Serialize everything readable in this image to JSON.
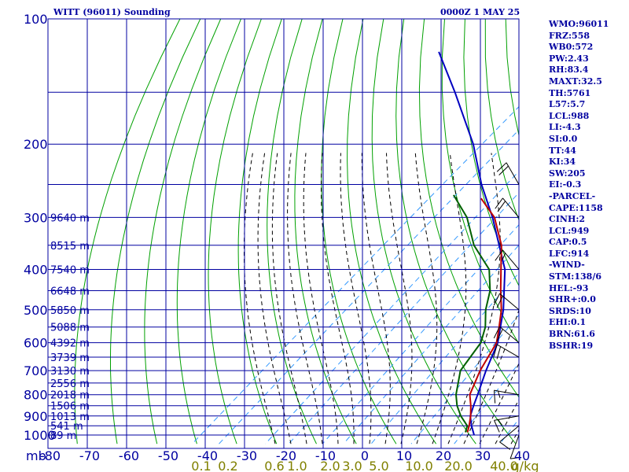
{
  "header": {
    "station_title": "WITT (96011) Sounding",
    "valid_time": "0000Z  1 MAY 25"
  },
  "indices": [
    "WMO:96011",
    "FRZ:558",
    "WB0:572",
    "PW:2.43",
    "RH:83.4",
    "MAXT:32.5",
    "TH:5761",
    "L57:5.7",
    "LCL:988",
    "LI:-4.3",
    "SI:0.0",
    "TT:44",
    "KI:34",
    "SW:205",
    "EI:-0.3",
    "-PARCEL-",
    "CAPE:1158",
    "CINH:2",
    "LCL:949",
    "CAP:0.5",
    "LFC:914",
    "-WIND-",
    "STM:138/6",
    "HEL:-93",
    "SHR+:0.0",
    "SRDS:10",
    "EHI:0.1",
    "BRN:61.6",
    "BSHR:19"
  ],
  "colors": {
    "frame": "#0000a0",
    "dry_adiabat": "#00a000",
    "moist_adiabat": "#000000",
    "mixing_ratio": "#3399ff",
    "parcel": "#0000c0",
    "temperature": "#c00000",
    "dewpoint": "#006000",
    "mixing_ratio_label": "#808000",
    "wind_barb": "#000000"
  },
  "chart_data": {
    "type": "skew-t",
    "title": "WITT (96011) Sounding",
    "pressure_axis": {
      "unit_label": "mb",
      "ticks": [
        100,
        200,
        300,
        400,
        500,
        600,
        700,
        800,
        900,
        1000
      ],
      "range": [
        100,
        1050
      ],
      "log_scale": true
    },
    "temperature_axis": {
      "ticks": [
        -80,
        -70,
        -60,
        -50,
        -40,
        -30,
        -20,
        -10,
        0,
        10,
        20,
        30,
        40
      ],
      "range": [
        -80,
        40
      ]
    },
    "mixing_ratio_labels": [
      "0.1",
      "0.2",
      "0.6",
      "1.0",
      "2.0",
      "3.0",
      "5.0",
      "10.0",
      "20.0",
      "40.0",
      "g/kg"
    ],
    "height_labels": [
      {
        "pressure": 300,
        "height": "9640 m"
      },
      {
        "pressure": 350,
        "height": "8515 m"
      },
      {
        "pressure": 400,
        "height": "7540 m"
      },
      {
        "pressure": 450,
        "height": "6648 m"
      },
      {
        "pressure": 500,
        "height": "5850 m"
      },
      {
        "pressure": 550,
        "height": "5088 m"
      },
      {
        "pressure": 600,
        "height": "4392 m"
      },
      {
        "pressure": 650,
        "height": "3739 m"
      },
      {
        "pressure": 700,
        "height": "3130 m"
      },
      {
        "pressure": 750,
        "height": "2556 m"
      },
      {
        "pressure": 800,
        "height": "2018 m"
      },
      {
        "pressure": 850,
        "height": "1506 m"
      },
      {
        "pressure": 900,
        "height": "1013 m"
      },
      {
        "pressure": 950,
        "height": "541 m"
      },
      {
        "pressure": 1000,
        "height": "89 m"
      }
    ],
    "series": [
      {
        "name": "parcel",
        "values": [
          [
            1000,
            28.0
          ],
          [
            950,
            24.6
          ],
          [
            900,
            21.4
          ],
          [
            850,
            19.2
          ],
          [
            800,
            17.0
          ],
          [
            700,
            12.0
          ],
          [
            600,
            6.8
          ],
          [
            500,
            -1.5
          ],
          [
            400,
            -13.0
          ],
          [
            300,
            -31.5
          ],
          [
            250,
            -44.0
          ],
          [
            200,
            -58.0
          ],
          [
            150,
            -78.0
          ],
          [
            120,
            -94.0
          ]
        ]
      },
      {
        "name": "temperature",
        "values": [
          [
            985,
            25.5
          ],
          [
            950,
            24.0
          ],
          [
            900,
            21.5
          ],
          [
            850,
            18.5
          ],
          [
            800,
            15.0
          ],
          [
            700,
            10.5
          ],
          [
            600,
            6.5
          ],
          [
            550,
            2.5
          ],
          [
            500,
            -2.0
          ],
          [
            450,
            -7.8
          ],
          [
            400,
            -14.0
          ],
          [
            350,
            -21.0
          ],
          [
            300,
            -31.0
          ],
          [
            270,
            -40.0
          ]
        ]
      },
      {
        "name": "dewpoint",
        "values": [
          [
            985,
            25.0
          ],
          [
            950,
            23.5
          ],
          [
            900,
            19.0
          ],
          [
            850,
            15.0
          ],
          [
            800,
            11.5
          ],
          [
            700,
            5.5
          ],
          [
            600,
            2.5
          ],
          [
            550,
            -1.0
          ],
          [
            500,
            -6.0
          ],
          [
            450,
            -10.5
          ],
          [
            400,
            -17.0
          ],
          [
            350,
            -28.0
          ],
          [
            300,
            -38.0
          ],
          [
            265,
            -48.0
          ]
        ]
      }
    ],
    "wind_barbs": [
      {
        "pressure": 1000,
        "direction": 200,
        "speed_kt": 5
      },
      {
        "pressure": 950,
        "direction": 230,
        "speed_kt": 10
      },
      {
        "pressure": 900,
        "direction": 260,
        "speed_kt": 15
      },
      {
        "pressure": 800,
        "direction": 280,
        "speed_kt": 15
      },
      {
        "pressure": 650,
        "direction": 300,
        "speed_kt": 20
      },
      {
        "pressure": 600,
        "direction": 310,
        "speed_kt": 20
      },
      {
        "pressure": 500,
        "direction": 310,
        "speed_kt": 20
      },
      {
        "pressure": 400,
        "direction": 320,
        "speed_kt": 15
      },
      {
        "pressure": 300,
        "direction": 320,
        "speed_kt": 20
      },
      {
        "pressure": 250,
        "direction": 330,
        "speed_kt": 20
      }
    ]
  }
}
